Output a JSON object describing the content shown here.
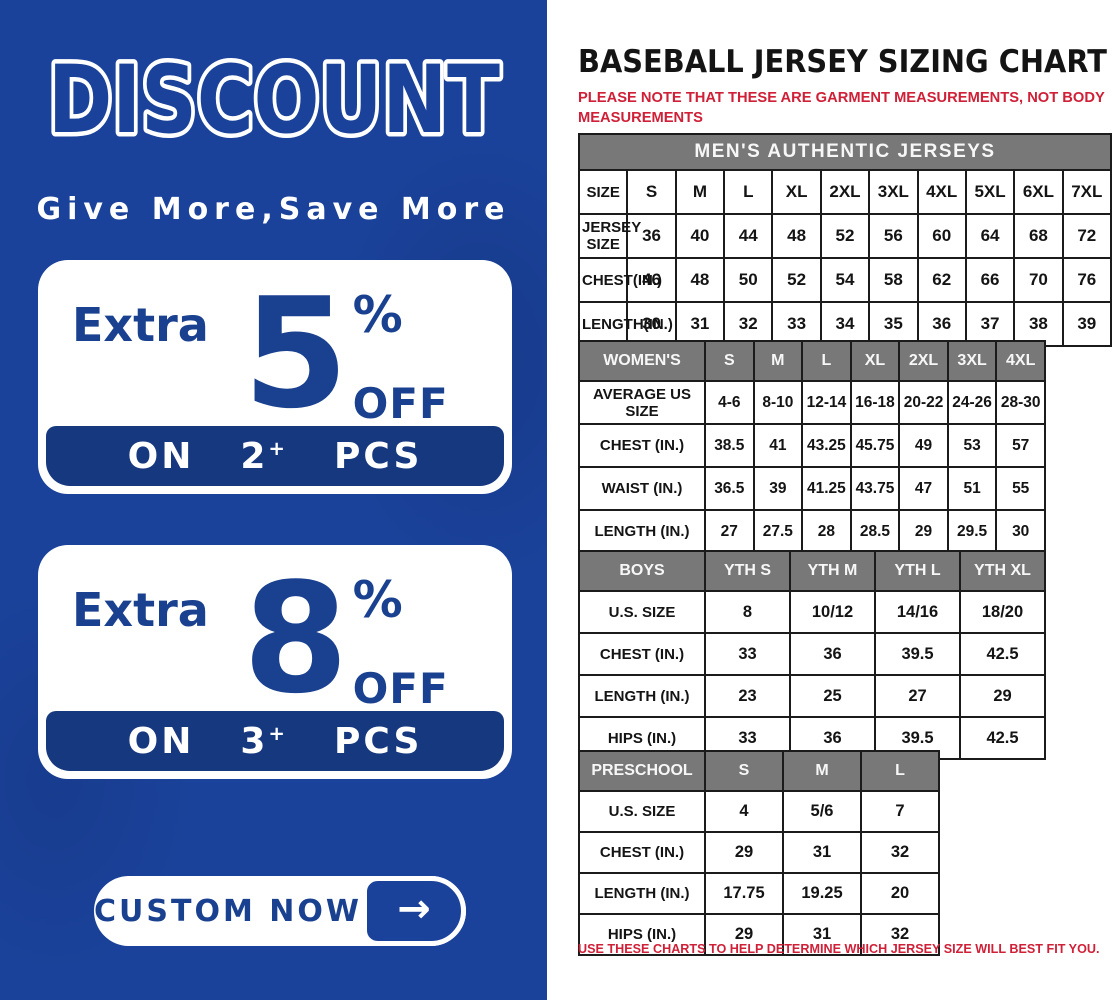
{
  "colors": {
    "panel_blue": "#1a429a",
    "band_navy": "#16387f",
    "accent_text_blue": "#1a4190",
    "table_header_gray": "#787878",
    "note_red": "#cf2038"
  },
  "promo": {
    "title": "DISCOUNT",
    "subtitle": "Give More,Save More",
    "offers": [
      {
        "prefix": "Extra",
        "value": "5",
        "percent": "%",
        "suffix": "OFF",
        "on": "ON",
        "qty": "2",
        "plus": "+",
        "pcs": "PCS"
      },
      {
        "prefix": "Extra",
        "value": "8",
        "percent": "%",
        "suffix": "OFF",
        "on": "ON",
        "qty": "3",
        "plus": "+",
        "pcs": "PCS"
      }
    ],
    "cta": {
      "label": "CUSTOM NOW",
      "arrow": "→"
    }
  },
  "chart": {
    "title": "BASEBALL JERSEY SIZING CHART",
    "note_top": "PLEASE NOTE THAT THESE ARE GARMENT MEASUREMENTS, NOT BODY MEASUREMENTS",
    "note_bottom": "USE THESE CHARTS TO HELP DETERMINE WHICH JERSEY SIZE WILL BEST FIT YOU.",
    "tables": [
      {
        "banner": "MEN'S AUTHENTIC JERSEYS",
        "rows": [
          [
            "SIZE",
            "S",
            "M",
            "L",
            "XL",
            "2XL",
            "3XL",
            "4XL",
            "5XL",
            "6XL",
            "7XL"
          ],
          [
            "JERSEY SIZE",
            "36",
            "40",
            "44",
            "48",
            "52",
            "56",
            "60",
            "64",
            "68",
            "72"
          ],
          [
            "CHEST(IN.)",
            "46",
            "48",
            "50",
            "52",
            "54",
            "58",
            "62",
            "66",
            "70",
            "76"
          ],
          [
            "LENGTH(IN.)",
            "30",
            "31",
            "32",
            "33",
            "34",
            "35",
            "36",
            "37",
            "38",
            "39"
          ]
        ]
      },
      {
        "header": [
          "WOMEN'S",
          "S",
          "M",
          "L",
          "XL",
          "2XL",
          "3XL",
          "4XL"
        ],
        "rows": [
          [
            "AVERAGE US SIZE",
            "4-6",
            "8-10",
            "12-14",
            "16-18",
            "20-22",
            "24-26",
            "28-30"
          ],
          [
            "CHEST (IN.)",
            "38.5",
            "41",
            "43.25",
            "45.75",
            "49",
            "53",
            "57"
          ],
          [
            "WAIST (IN.)",
            "36.5",
            "39",
            "41.25",
            "43.75",
            "47",
            "51",
            "55"
          ],
          [
            "LENGTH (IN.)",
            "27",
            "27.5",
            "28",
            "28.5",
            "29",
            "29.5",
            "30"
          ]
        ]
      },
      {
        "header": [
          "BOYS",
          "YTH S",
          "YTH M",
          "YTH L",
          "YTH XL"
        ],
        "rows": [
          [
            "U.S. SIZE",
            "8",
            "10/12",
            "14/16",
            "18/20"
          ],
          [
            "CHEST (IN.)",
            "33",
            "36",
            "39.5",
            "42.5"
          ],
          [
            "LENGTH (IN.)",
            "23",
            "25",
            "27",
            "29"
          ],
          [
            "HIPS (IN.)",
            "33",
            "36",
            "39.5",
            "42.5"
          ]
        ]
      },
      {
        "header": [
          "PRESCHOOL",
          "S",
          "M",
          "L"
        ],
        "rows": [
          [
            "U.S. SIZE",
            "4",
            "5/6",
            "7"
          ],
          [
            "CHEST (IN.)",
            "29",
            "31",
            "32"
          ],
          [
            "LENGTH (IN.)",
            "17.75",
            "19.25",
            "20"
          ],
          [
            "HIPS (IN.)",
            "29",
            "31",
            "32"
          ]
        ]
      }
    ]
  }
}
